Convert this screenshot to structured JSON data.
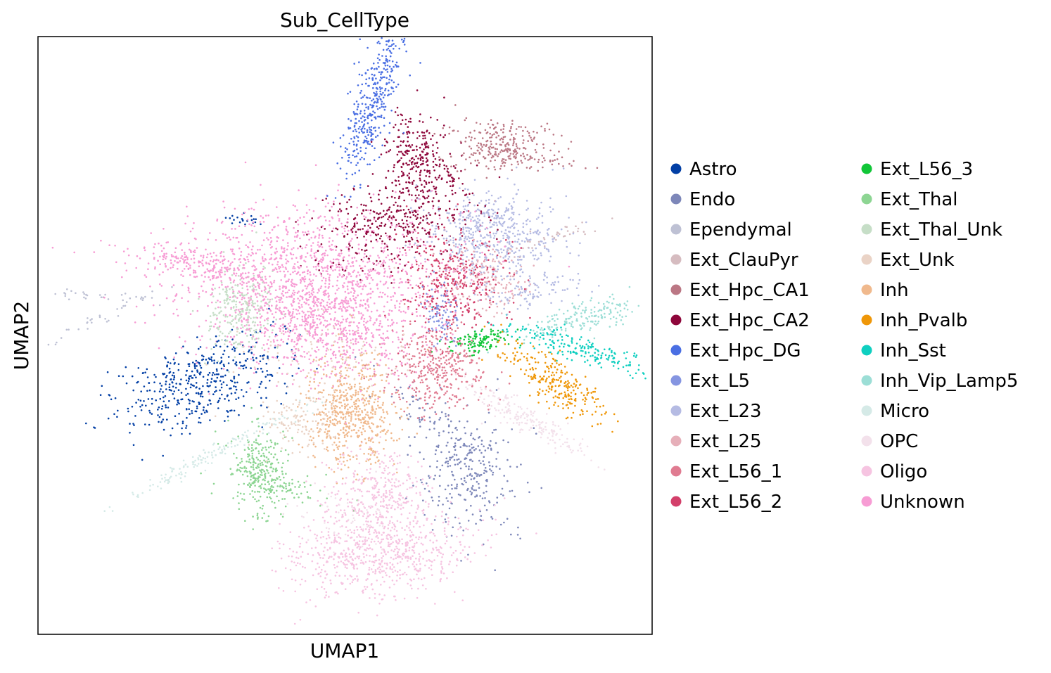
{
  "chart_data": {
    "type": "scatter",
    "title": "Sub_CellType",
    "xlabel": "UMAP1",
    "ylabel": "UMAP2",
    "xlim": [
      -12,
      12
    ],
    "ylim": [
      -12,
      12
    ],
    "grid": false,
    "ticks": false,
    "legend_position": "right, outside plot, two columns",
    "series": [
      {
        "name": "Astro",
        "color": "#023fa5",
        "clusters": [
          {
            "x": -6.2,
            "y": -1.5,
            "sx": 1.8,
            "sy": 0.55,
            "n": 240,
            "rot": 0.35
          },
          {
            "x": -5.0,
            "y": -2.3,
            "sx": 1.6,
            "sy": 0.6,
            "n": 220,
            "rot": 0.45
          },
          {
            "x": -4.0,
            "y": 4.6,
            "sx": 0.35,
            "sy": 0.15,
            "n": 20,
            "rot": 0
          }
        ]
      },
      {
        "name": "Endo",
        "color": "#7d87b9",
        "clusters": [
          {
            "x": 4.7,
            "y": -5.7,
            "sx": 1.0,
            "sy": 1.2,
            "n": 260,
            "rot": 0.3
          },
          {
            "x": 3.8,
            "y": -3.5,
            "sx": 1.5,
            "sy": 0.4,
            "n": 90,
            "rot": -0.6
          }
        ]
      },
      {
        "name": "Ependymal",
        "color": "#bec1d4",
        "clusters": [
          {
            "x": -9.8,
            "y": 1.6,
            "sx": 1.2,
            "sy": 0.1,
            "n": 30,
            "rot": -0.05
          },
          {
            "x": -9.5,
            "y": 0.7,
            "sx": 1.3,
            "sy": 0.12,
            "n": 30,
            "rot": 0.45
          }
        ]
      },
      {
        "name": "Ext_ClauPyr",
        "color": "#d6bcc0",
        "clusters": [
          {
            "x": 8.0,
            "y": 3.9,
            "sx": 1.2,
            "sy": 0.18,
            "n": 40,
            "rot": 0.35
          }
        ]
      },
      {
        "name": "Ext_Hpc_CA1",
        "color": "#bb7784",
        "clusters": [
          {
            "x": 6.0,
            "y": 7.6,
            "sx": 1.0,
            "sy": 0.55,
            "n": 260,
            "rot": 0.05
          },
          {
            "x": 7.8,
            "y": 7.0,
            "sx": 0.8,
            "sy": 0.1,
            "n": 25,
            "rot": -0.1
          }
        ]
      },
      {
        "name": "Ext_Hpc_CA2",
        "color": "#8e063b",
        "clusters": [
          {
            "x": 2.8,
            "y": 7.2,
            "sx": 0.6,
            "sy": 0.9,
            "n": 240,
            "rot": 0.1
          },
          {
            "x": 1.8,
            "y": 4.6,
            "sx": 1.5,
            "sy": 0.9,
            "n": 360,
            "rot": 0.4
          },
          {
            "x": 4.2,
            "y": 6.2,
            "sx": 0.9,
            "sy": 0.2,
            "n": 40,
            "rot": -0.8
          }
        ]
      },
      {
        "name": "Ext_Hpc_DG",
        "color": "#4a6fe3",
        "clusters": [
          {
            "x": 1.1,
            "y": 9.4,
            "sx": 0.4,
            "sy": 1.6,
            "n": 380,
            "rot": -0.3
          }
        ]
      },
      {
        "name": "Ext_L5",
        "color": "#8595e1",
        "clusters": [
          {
            "x": 3.8,
            "y": 0.9,
            "sx": 0.35,
            "sy": 0.6,
            "n": 90,
            "rot": 0.2
          }
        ]
      },
      {
        "name": "Ext_L23",
        "color": "#b5bbe3",
        "clusters": [
          {
            "x": 5.7,
            "y": 4.0,
            "sx": 1.3,
            "sy": 0.9,
            "n": 520,
            "rot": 0.05
          },
          {
            "x": 7.2,
            "y": 1.7,
            "sx": 1.0,
            "sy": 0.3,
            "n": 90,
            "rot": 0.15
          }
        ]
      },
      {
        "name": "Ext_L25",
        "color": "#e6afb9",
        "clusters": [
          {
            "x": 5.5,
            "y": 2.3,
            "sx": 0.8,
            "sy": 0.7,
            "n": 160,
            "rot": 0
          }
        ]
      },
      {
        "name": "Ext_L56_1",
        "color": "#e07b91",
        "clusters": [
          {
            "x": 3.6,
            "y": -1.3,
            "sx": 0.9,
            "sy": 0.9,
            "n": 380,
            "rot": 0
          }
        ]
      },
      {
        "name": "Ext_L56_2",
        "color": "#d33f6a",
        "clusters": [
          {
            "x": 4.2,
            "y": 2.2,
            "sx": 1.0,
            "sy": 1.0,
            "n": 380,
            "rot": 0
          }
        ]
      },
      {
        "name": "Ext_L56_3",
        "color": "#11c638",
        "clusters": [
          {
            "x": 5.3,
            "y": -0.2,
            "sx": 0.55,
            "sy": 0.22,
            "n": 120,
            "rot": 0.2
          }
        ]
      },
      {
        "name": "Ext_Thal",
        "color": "#8dd593",
        "clusters": [
          {
            "x": -3.3,
            "y": -5.4,
            "sx": 0.55,
            "sy": 0.9,
            "n": 260,
            "rot": 0.15
          },
          {
            "x": -2.6,
            "y": -6.0,
            "sx": 1.1,
            "sy": 0.3,
            "n": 80,
            "rot": -0.2
          }
        ]
      },
      {
        "name": "Ext_Thal_Unk",
        "color": "#c6dec7",
        "clusters": [
          {
            "x": -4.0,
            "y": 0.9,
            "sx": 0.6,
            "sy": 0.9,
            "n": 260,
            "rot": 0
          }
        ]
      },
      {
        "name": "Ext_Unk",
        "color": "#ead3c6",
        "clusters": [
          {
            "x": -1.6,
            "y": -3.5,
            "sx": 0.9,
            "sy": 0.6,
            "n": 120,
            "rot": 0.3
          },
          {
            "x": -0.8,
            "y": -0.9,
            "sx": 1.6,
            "sy": 0.9,
            "n": 110,
            "rot": 0
          }
        ]
      },
      {
        "name": "Inh",
        "color": "#f0b98d",
        "clusters": [
          {
            "x": 0.2,
            "y": -3.2,
            "sx": 0.85,
            "sy": 1.1,
            "n": 560,
            "rot": 0.1
          }
        ]
      },
      {
        "name": "Inh_Pvalb",
        "color": "#ef9708",
        "clusters": [
          {
            "x": 8.2,
            "y": -1.9,
            "sx": 1.3,
            "sy": 0.38,
            "n": 260,
            "rot": -0.6
          }
        ]
      },
      {
        "name": "Inh_Sst",
        "color": "#0fcfc0",
        "clusters": [
          {
            "x": 9.0,
            "y": -0.5,
            "sx": 1.3,
            "sy": 0.25,
            "n": 200,
            "rot": -0.3
          }
        ]
      },
      {
        "name": "Inh_Vip_Lamp5",
        "color": "#9cded6",
        "clusters": [
          {
            "x": 9.3,
            "y": 0.7,
            "sx": 1.2,
            "sy": 0.3,
            "n": 180,
            "rot": 0.25
          }
        ]
      },
      {
        "name": "Micro",
        "color": "#d5eae7",
        "clusters": [
          {
            "x": -5.2,
            "y": -4.8,
            "sx": 2.0,
            "sy": 0.15,
            "n": 150,
            "rot": 0.5
          }
        ]
      },
      {
        "name": "OPC",
        "color": "#f3e1eb",
        "clusters": [
          {
            "x": 7.0,
            "y": -3.3,
            "sx": 1.4,
            "sy": 0.25,
            "n": 200,
            "rot": -0.55
          },
          {
            "x": 0.3,
            "y": -7.3,
            "sx": 1.0,
            "sy": 0.6,
            "n": 60,
            "rot": 0
          }
        ]
      },
      {
        "name": "Oligo",
        "color": "#f6c4e1",
        "clusters": [
          {
            "x": 1.2,
            "y": -8.7,
            "sx": 1.8,
            "sy": 0.9,
            "n": 720,
            "rot": 0.12
          },
          {
            "x": 1.3,
            "y": -6.2,
            "sx": 1.0,
            "sy": 0.8,
            "n": 280,
            "rot": 0
          }
        ]
      },
      {
        "name": "Unknown",
        "color": "#f79cd4",
        "clusters": [
          {
            "x": -1.2,
            "y": 2.2,
            "sx": 2.6,
            "sy": 1.5,
            "n": 1500,
            "rot": 0
          },
          {
            "x": -6.0,
            "y": 2.9,
            "sx": 1.4,
            "sy": 0.35,
            "n": 200,
            "rot": -0.15
          },
          {
            "x": -0.6,
            "y": 0.0,
            "sx": 1.6,
            "sy": 0.9,
            "n": 420,
            "rot": 0
          }
        ]
      }
    ]
  }
}
